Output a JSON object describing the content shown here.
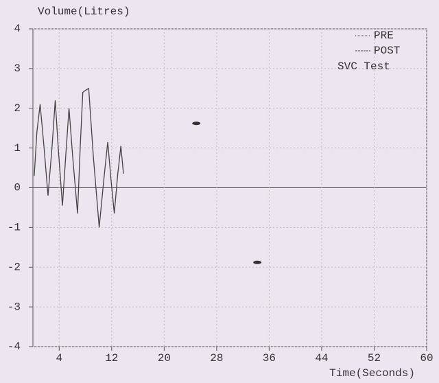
{
  "chart_data": {
    "type": "line",
    "title": "Volume(Litres)",
    "x_label": "Time(Seconds)",
    "annotation": "SVC Test",
    "xlim": [
      0,
      60
    ],
    "ylim": [
      -4,
      4
    ],
    "xticks": [
      4,
      12,
      20,
      28,
      36,
      44,
      52,
      60
    ],
    "yticks": [
      -4,
      -3,
      -2,
      -1,
      0,
      1,
      2,
      3,
      4
    ],
    "grid": true,
    "legend": "top-right",
    "series": [
      {
        "name": "PRE",
        "color": "#444444",
        "x": [
          0.2,
          0.6,
          1.1,
          1.7,
          2.3,
          2.9,
          3.4,
          3.9,
          4.5,
          5.0,
          5.5,
          6.1,
          6.8,
          7.2,
          7.6,
          8.0,
          8.5,
          9.2,
          10.1,
          10.8,
          11.4,
          11.9,
          12.4,
          12.9,
          13.4,
          13.8
        ],
        "values": [
          0.3,
          1.4,
          2.1,
          1.0,
          -0.2,
          1.0,
          2.2,
          0.9,
          -0.45,
          0.8,
          2.0,
          0.7,
          -0.65,
          1.0,
          2.4,
          2.45,
          2.5,
          0.8,
          -1.0,
          0.2,
          1.15,
          0.2,
          -0.65,
          0.3,
          1.05,
          0.35
        ]
      },
      {
        "name": "POST",
        "color": "#444444",
        "x": [],
        "values": []
      }
    ],
    "markers": {
      "x": [
        24.9,
        34.2
      ],
      "values": [
        1.62,
        -1.88
      ]
    }
  }
}
